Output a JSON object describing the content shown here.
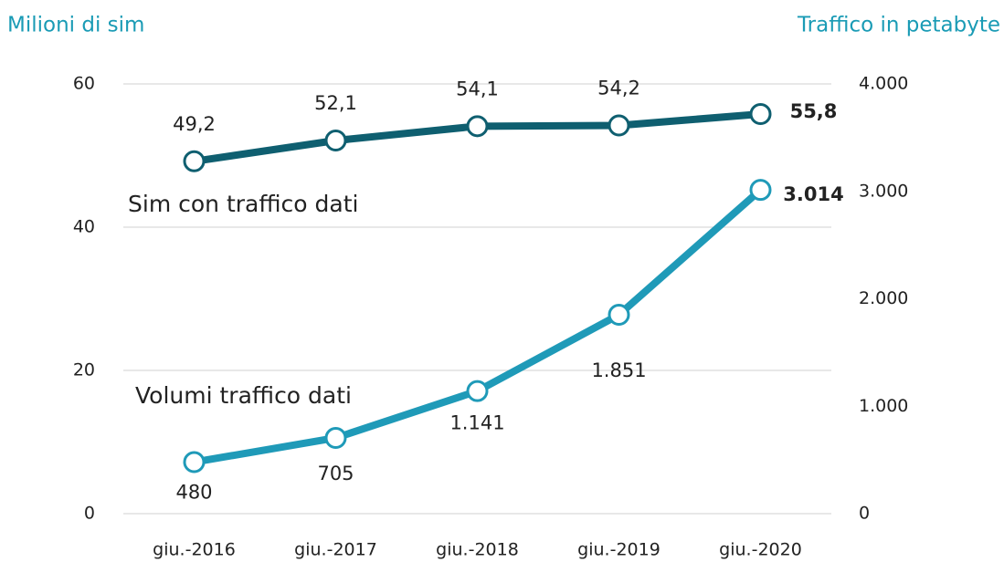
{
  "chart_data": {
    "type": "line",
    "ylabel": "Milioni di sim",
    "y2label": "Traffico in petabyte",
    "categories": [
      "giu.-2016",
      "giu.-2017",
      "giu.-2018",
      "giu.-2019",
      "giu.-2020"
    ],
    "series": [
      {
        "name": "Sim con traffico dati",
        "color": "#0f5f70",
        "axis": "y",
        "values": [
          49.2,
          52.1,
          54.1,
          54.2,
          55.8
        ],
        "value_labels": [
          "49,2",
          "52,1",
          "54,1",
          "54,2",
          "55,8"
        ]
      },
      {
        "name": "Volumi traffico dati",
        "color": "#1f9ab8",
        "axis": "y2",
        "values": [
          480,
          705,
          1141,
          1851,
          3014
        ],
        "value_labels": [
          "480",
          "705",
          "1.141",
          "1.851",
          "3.014"
        ]
      }
    ],
    "ylim": [
      0,
      60
    ],
    "yticks": [
      0,
      20,
      40,
      60
    ],
    "y2lim": [
      0,
      4000
    ],
    "y2ticks": [
      0,
      {
        "value": 1000,
        "label": "1.000"
      },
      {
        "value": 2000,
        "label": "2.000"
      },
      {
        "value": 3000,
        "label": "3.000"
      },
      {
        "value": 4000,
        "label": "4.000"
      }
    ],
    "grid": true
  }
}
